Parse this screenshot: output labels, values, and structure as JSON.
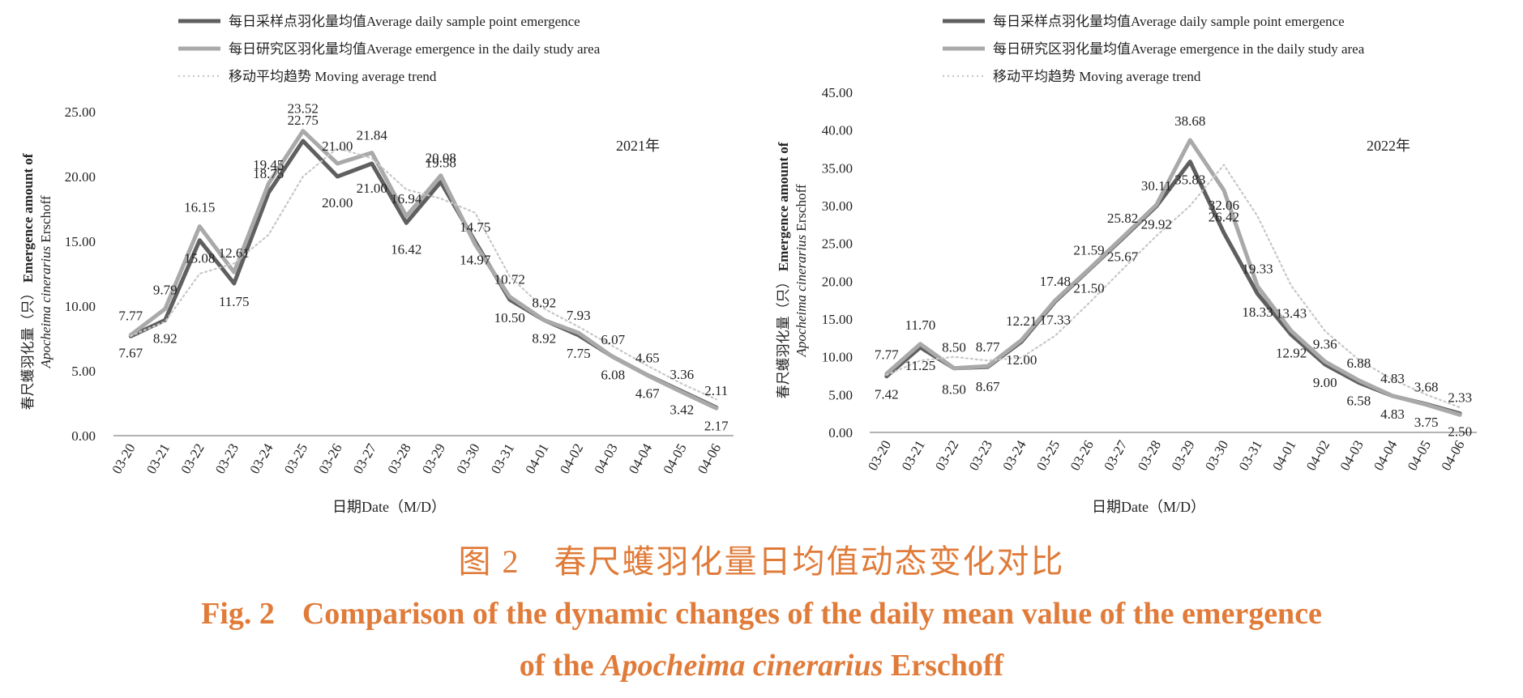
{
  "chart_data": [
    {
      "type": "line",
      "annotation": "2021年",
      "xlabel": "日期Date（M/D）",
      "ylabel_zh": "春尺蠖羽化量（只）",
      "ylabel_en": "Emergence amount of",
      "ylabel_species": "Apocheima cinerarius",
      "ylabel_author": "Erschoff",
      "ylim": [
        0,
        25
      ],
      "yticks": [
        "0.00",
        "5.00",
        "10.00",
        "15.00",
        "20.00",
        "25.00"
      ],
      "categories": [
        "03-20",
        "03-21",
        "03-22",
        "03-23",
        "03-24",
        "03-25",
        "03-26",
        "03-27",
        "03-28",
        "03-29",
        "03-30",
        "03-31",
        "04-01",
        "04-02",
        "04-03",
        "04-04",
        "04-05",
        "04-06"
      ],
      "legend_position": "top",
      "series": [
        {
          "name": "每日采样点羽化量均值Average daily  sample point emergence",
          "color": "#5f5f5f",
          "values": [
            7.67,
            8.92,
            15.08,
            11.75,
            18.75,
            22.75,
            20.0,
            21.0,
            16.42,
            19.58,
            14.97,
            10.5,
            8.92,
            7.75,
            6.08,
            4.67,
            3.42,
            2.17
          ]
        },
        {
          "name": "每日研究区羽化量均值Average emergence in the daily study area",
          "color": "#a9a9a9",
          "values": [
            7.77,
            9.79,
            16.15,
            12.61,
            19.45,
            23.52,
            21.0,
            21.84,
            16.94,
            20.08,
            14.75,
            10.72,
            8.92,
            7.93,
            6.07,
            4.65,
            3.36,
            2.11
          ]
        },
        {
          "name": "移动平均趋势   Moving average trend",
          "color": "#c7c7c7",
          "style": "dotted",
          "values": [
            7.7,
            8.8,
            12.5,
            13.3,
            15.5,
            20.0,
            22.2,
            21.4,
            19.0,
            18.3,
            17.2,
            12.3,
            9.8,
            8.4,
            6.9,
            5.4,
            4.0,
            2.8
          ]
        }
      ],
      "data_labels": {
        "upper": [
          "7.77",
          "9.79",
          "16.15",
          "12.61",
          "19.45",
          "23.52",
          "21.00",
          "21.84",
          "16.94",
          "20.08",
          "14.75",
          "10.72",
          "8.92",
          "7.93",
          "6.07",
          "4.65",
          "3.36",
          "2.11"
        ],
        "lower": [
          "7.67",
          "8.92",
          "15.08",
          "11.75",
          "18.75",
          "22.75",
          "20.00",
          "21.00",
          "16.42",
          "19.58",
          "14.97",
          "10.50",
          "8.92",
          "7.75",
          "6.08",
          "4.67",
          "3.42",
          "2.17"
        ]
      }
    },
    {
      "type": "line",
      "annotation": "2022年",
      "xlabel": "日期Date（M/D）",
      "ylabel_zh": "春尺蠖羽化量（只）",
      "ylabel_en": "Emergence amount of",
      "ylabel_species": "Apocheima cinerarius",
      "ylabel_author": "Erschoff",
      "ylim": [
        0,
        45
      ],
      "yticks": [
        "0.00",
        "5.00",
        "10.00",
        "15.00",
        "20.00",
        "25.00",
        "30.00",
        "35.00",
        "40.00",
        "45.00"
      ],
      "categories": [
        "03-20",
        "03-21",
        "03-22",
        "03-23",
        "03-24",
        "03-25",
        "03-26",
        "03-27",
        "03-28",
        "03-29",
        "03-30",
        "03-31",
        "04-01",
        "04-02",
        "04-03",
        "04-04",
        "04-05",
        "04-06"
      ],
      "legend_position": "top",
      "series": [
        {
          "name": "每日采样点羽化量均值Average daily  sample point emergence",
          "color": "#5f5f5f",
          "values": [
            7.42,
            11.25,
            8.5,
            8.67,
            12.0,
            17.33,
            21.5,
            25.67,
            29.92,
            35.83,
            26.42,
            18.33,
            12.92,
            9.0,
            6.58,
            4.83,
            3.75,
            2.5
          ]
        },
        {
          "name": "每日研究区羽化量均值Average emergence in the daily study area",
          "color": "#a9a9a9",
          "values": [
            7.77,
            11.7,
            8.5,
            8.77,
            12.21,
            17.48,
            21.59,
            25.82,
            30.11,
            38.68,
            32.06,
            19.33,
            13.43,
            9.36,
            6.88,
            4.83,
            3.68,
            2.33
          ]
        },
        {
          "name": "移动平均趋势 Moving average trend",
          "color": "#c7c7c7",
          "style": "dotted",
          "values": [
            7.6,
            9.5,
            10.0,
            9.5,
            9.9,
            12.8,
            17.1,
            21.6,
            26.0,
            30.0,
            35.4,
            28.6,
            19.4,
            13.4,
            9.6,
            7.0,
            5.0,
            3.3
          ]
        }
      ],
      "data_labels": {
        "upper": [
          "7.77",
          "11.70",
          "8.50",
          "8.77",
          "12.21",
          "17.48",
          "21.59",
          "25.82",
          "30.11",
          "38.68",
          "32.06",
          "19.33",
          "13.43",
          "9.36",
          "6.88",
          "4.83",
          "3.68",
          "2.33"
        ],
        "lower": [
          "7.42",
          "11.25",
          "8.50",
          "8.67",
          "12.00",
          "17.33",
          "21.50",
          "25.67",
          "29.92",
          "35.83",
          "26.42",
          "18.33",
          "12.92",
          "9.00",
          "6.58",
          "4.83",
          "3.75",
          "2.50"
        ]
      }
    }
  ],
  "caption": {
    "zh": "图 2　春尺蠖羽化量日均值动态变化对比",
    "fig_no": "Fig. 2",
    "en_line1": "Comparison of the dynamic changes of the daily mean value of the emergence",
    "en_line2_pre": "of the ",
    "en_line2_species": "Apocheima cinerarius",
    "en_line2_post": " Erschoff"
  },
  "colors": {
    "caption": "#e07b39",
    "sample_point": "#5f5f5f",
    "study_area": "#a9a9a9",
    "moving_average": "#c7c7c7"
  }
}
